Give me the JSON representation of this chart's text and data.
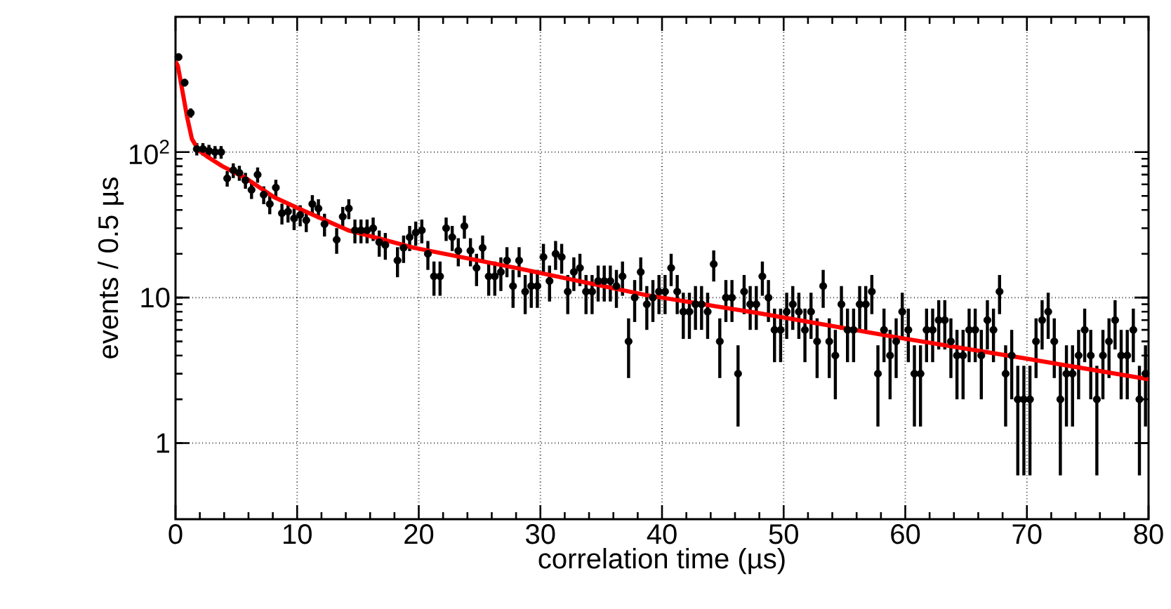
{
  "chart_data": {
    "type": "scatter",
    "xlabel": "correlation time (µs)",
    "ylabel": "events / 0.5 µs",
    "xlim": [
      0,
      80
    ],
    "ylim": [
      0.3,
      850
    ],
    "xticks": [
      0,
      10,
      20,
      30,
      40,
      50,
      60,
      70,
      80
    ],
    "yticks": [
      {
        "value": 1,
        "label": "1"
      },
      {
        "value": 10,
        "label": "10"
      },
      {
        "value": 100,
        "label": "10$^{2}$"
      }
    ],
    "log": "y",
    "grid": true,
    "series": [
      {
        "marker": "circle",
        "color": "#000000",
        "x": [
          0.25,
          0.75,
          1.25,
          1.75,
          2.25,
          2.75,
          3.25,
          3.75,
          4.25,
          4.75,
          5.25,
          5.75,
          6.25,
          6.75,
          7.25,
          7.75,
          8.25,
          8.75,
          9.25,
          9.75,
          10.25,
          10.75,
          11.25,
          11.75,
          12.25,
          13.25,
          13.75,
          14.25,
          14.75,
          15.25,
          15.75,
          16.25,
          16.75,
          17.25,
          18.25,
          18.75,
          19.25,
          19.75,
          20.25,
          20.75,
          21.25,
          21.75,
          22.25,
          22.75,
          23.25,
          23.75,
          24.25,
          24.75,
          25.25,
          25.75,
          26.25,
          26.75,
          27.25,
          27.75,
          28.25,
          28.75,
          29.25,
          29.75,
          30.25,
          30.75,
          31.25,
          31.75,
          32.25,
          32.75,
          33.25,
          33.75,
          34.25,
          34.75,
          35.25,
          35.75,
          36.25,
          36.75,
          37.25,
          37.75,
          38.25,
          38.75,
          39.25,
          39.75,
          40.25,
          40.75,
          41.25,
          41.75,
          42.25,
          42.75,
          43.25,
          43.75,
          44.25,
          44.75,
          45.25,
          45.75,
          46.25,
          46.75,
          47.25,
          47.75,
          48.25,
          48.75,
          49.25,
          49.75,
          50.25,
          50.75,
          51.25,
          51.75,
          52.25,
          52.75,
          53.25,
          53.75,
          54.25,
          54.75,
          55.25,
          55.75,
          56.25,
          56.75,
          57.25,
          57.75,
          58.25,
          58.75,
          59.25,
          59.75,
          60.25,
          60.75,
          61.25,
          61.75,
          62.25,
          62.75,
          63.25,
          63.75,
          64.25,
          64.75,
          65.25,
          65.75,
          66.25,
          66.75,
          67.25,
          67.75,
          68.25,
          68.75,
          69.25,
          69.75,
          70.25,
          70.75,
          71.25,
          71.75,
          72.25,
          72.75,
          73.25,
          73.75,
          74.25,
          74.75,
          75.25,
          75.75,
          76.25,
          76.75,
          77.25,
          77.75,
          78.25,
          78.75,
          79.25,
          79.75
        ],
        "values": [
          450,
          300,
          186,
          105,
          105,
          102,
          100,
          100,
          66,
          75,
          72,
          64,
          55,
          70,
          51,
          44,
          57,
          38,
          39,
          35,
          37,
          34,
          44,
          41,
          32,
          25,
          36,
          41,
          29,
          29,
          29,
          30,
          24,
          23,
          18,
          22,
          26,
          28,
          29,
          20,
          14,
          14,
          30,
          26,
          21,
          31,
          21,
          16,
          22,
          14,
          14,
          15,
          18,
          12,
          18,
          11,
          12,
          12,
          19,
          13,
          20,
          19,
          11,
          15,
          16,
          11,
          11,
          13,
          13,
          13,
          12,
          14,
          5,
          10,
          15,
          9,
          10,
          11,
          11,
          16,
          11,
          8,
          8,
          9,
          9,
          8,
          17,
          5,
          10,
          10,
          3,
          11,
          9,
          9,
          14,
          10,
          6,
          6,
          8,
          9,
          8,
          6,
          8,
          5,
          12,
          5,
          4,
          9,
          6,
          6,
          9,
          9,
          11,
          3,
          6,
          4,
          5,
          8,
          6,
          3,
          3,
          6,
          6,
          7,
          7,
          5,
          4,
          4,
          6,
          6,
          4,
          7,
          6,
          11,
          3,
          4,
          2,
          2,
          2,
          5,
          7,
          8,
          5,
          2,
          3,
          3,
          4,
          6,
          4,
          2,
          4,
          5,
          7,
          4,
          4,
          6,
          2,
          3
        ],
        "errors": [
          21.2,
          17.3,
          13.6,
          10.2,
          10.2,
          10.1,
          10,
          10,
          8.1,
          8.7,
          8.5,
          8,
          7.4,
          8.4,
          7.1,
          6.6,
          7.5,
          6.2,
          6.2,
          5.9,
          6.1,
          5.8,
          6.6,
          6.4,
          5.7,
          5,
          6,
          6.4,
          5.4,
          5.4,
          5.4,
          5.5,
          4.9,
          4.8,
          4.2,
          4.7,
          5.1,
          5.3,
          5.4,
          4.5,
          3.7,
          3.7,
          5.5,
          5.1,
          4.6,
          5.6,
          4.6,
          4,
          4.7,
          3.7,
          3.7,
          3.9,
          4.2,
          3.5,
          4.2,
          3.3,
          3.5,
          3.5,
          4.4,
          3.6,
          4.5,
          4.4,
          3.3,
          3.9,
          4,
          3.3,
          3.3,
          3.6,
          3.6,
          3.6,
          3.5,
          3.7,
          2.2,
          3.2,
          3.9,
          3,
          3.2,
          3.3,
          3.3,
          4,
          3.3,
          2.8,
          2.8,
          3,
          3,
          2.8,
          4.1,
          2.2,
          3.2,
          3.2,
          1.7,
          3.3,
          3,
          3,
          3.7,
          3.2,
          2.4,
          2.4,
          2.8,
          3,
          2.8,
          2.4,
          2.8,
          2.2,
          3.5,
          2.2,
          2,
          3,
          2.4,
          2.4,
          3,
          3,
          3.3,
          1.7,
          2.4,
          2,
          2.2,
          2.8,
          2.4,
          1.7,
          1.7,
          2.4,
          2.4,
          2.6,
          2.6,
          2.2,
          2,
          2,
          2.4,
          2.4,
          2,
          2.6,
          2.4,
          3.3,
          1.7,
          2,
          1.4,
          1.4,
          1.4,
          2.2,
          2.6,
          2.8,
          2.2,
          1.4,
          1.7,
          1.7,
          2,
          2.4,
          2,
          1.4,
          2,
          2.2,
          2.6,
          2,
          2,
          2.4,
          1.4,
          1.7
        ]
      },
      {
        "type": "line",
        "marker": "none",
        "color": "#ff0000",
        "x": [
          0,
          0.2,
          0.58,
          0.96,
          1.35,
          1.9,
          2.7,
          3.85,
          5.8,
          8.1,
          10.4,
          14.2,
          19.6,
          28,
          38.7,
          48,
          59.5,
          70,
          80
        ],
        "values": [
          420,
          390,
          260,
          173,
          123,
          103,
          92,
          80,
          66,
          49,
          40,
          29,
          22,
          16,
          10.4,
          7.8,
          5.3,
          3.8,
          2.75
        ]
      }
    ]
  }
}
